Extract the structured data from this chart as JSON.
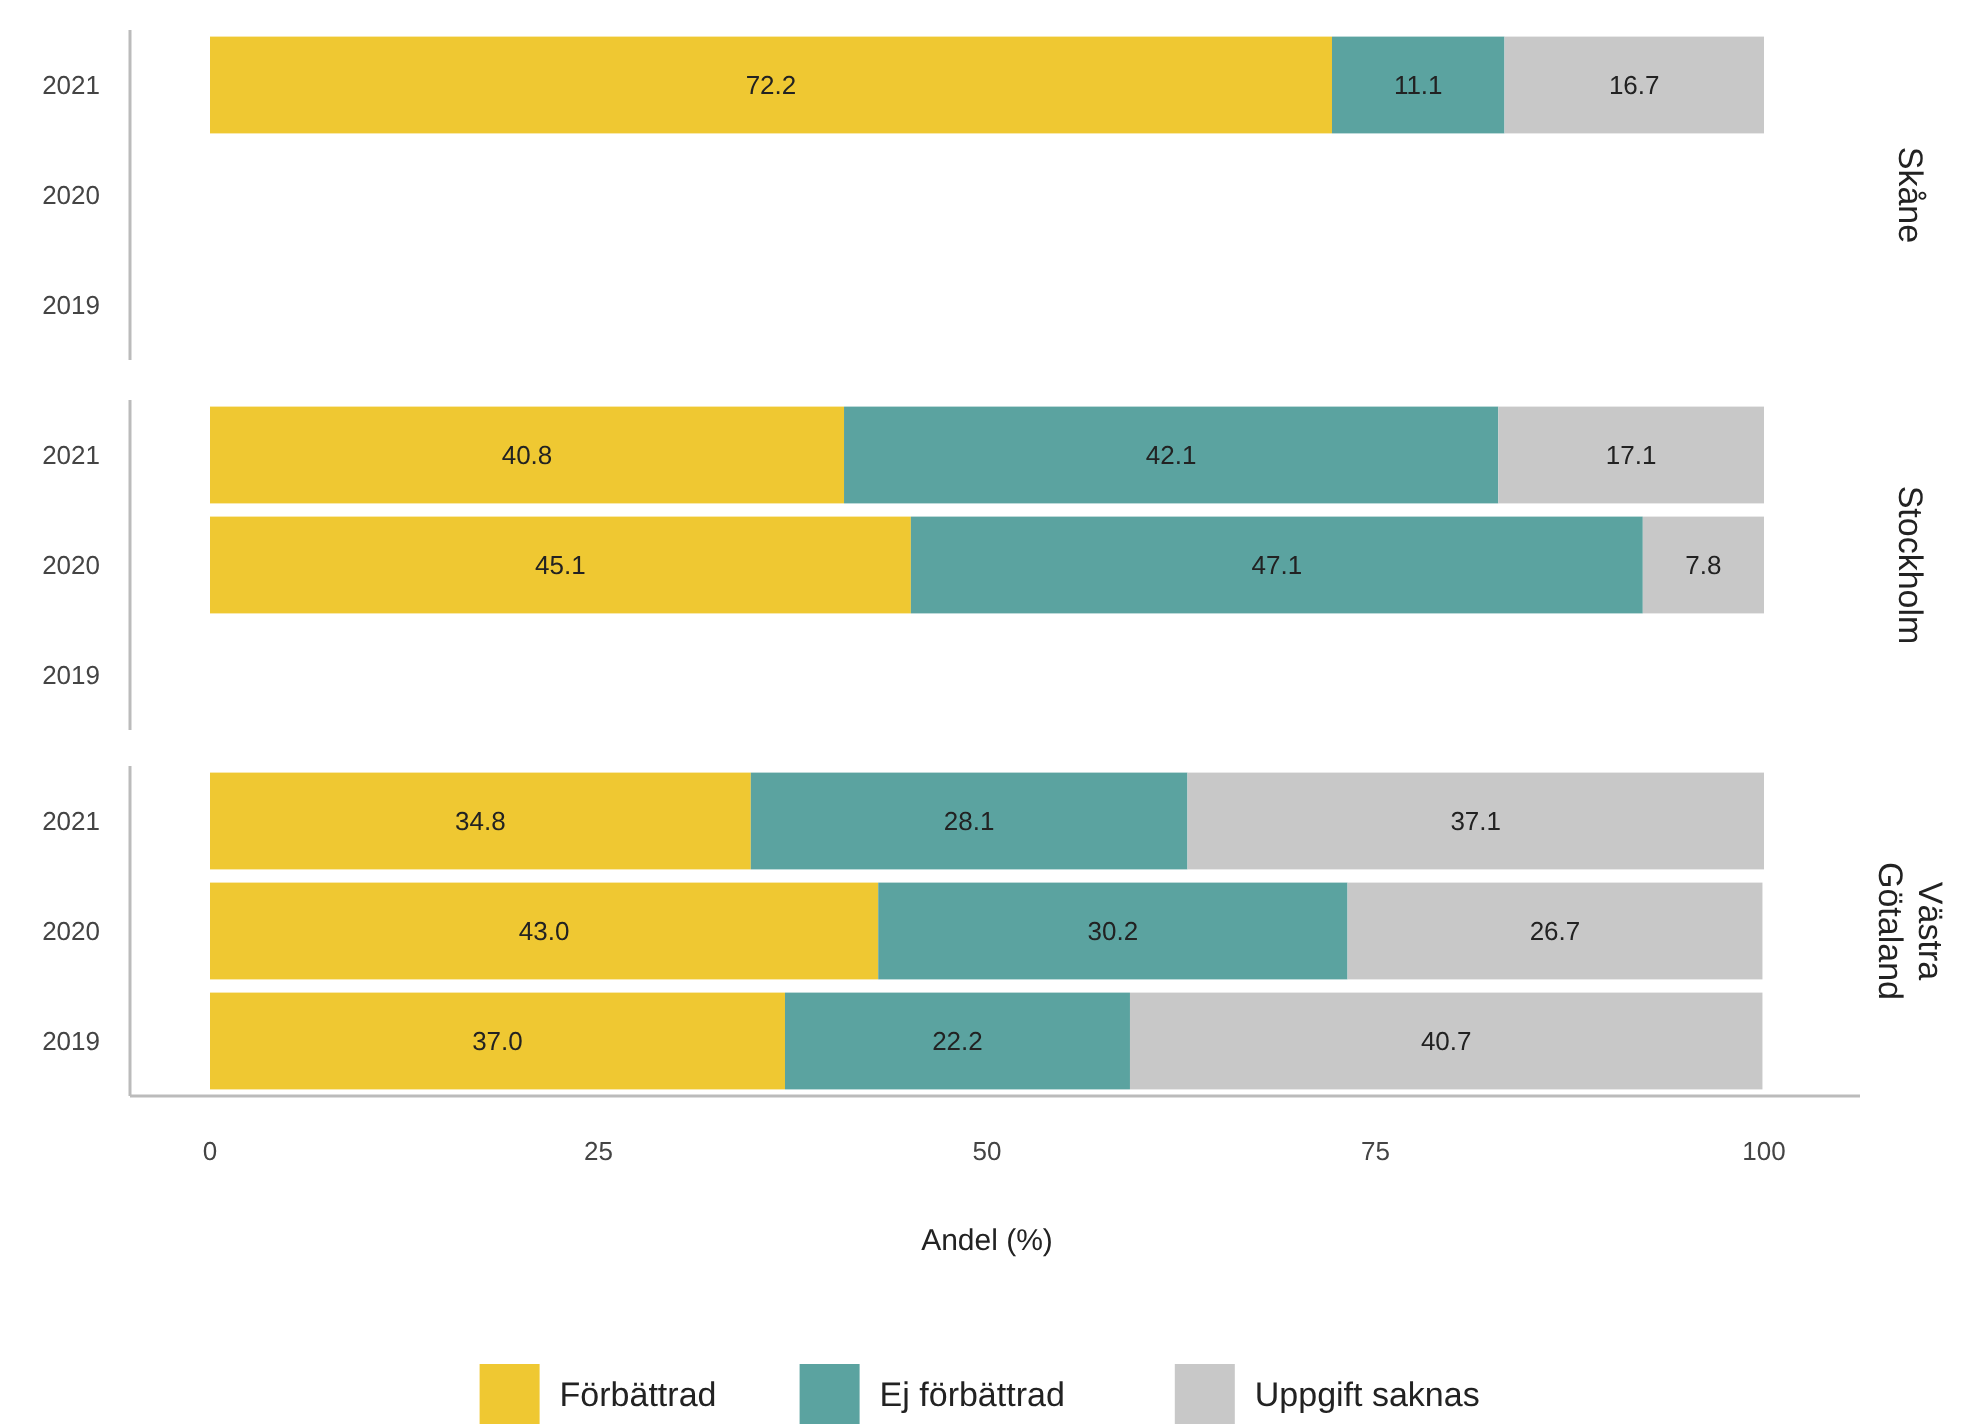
{
  "chart_data": [
    {
      "type": "bar",
      "orientation": "horizontal",
      "stacked": true,
      "y2label": "Skåne",
      "categories": [
        "2021",
        "2020",
        "2019"
      ],
      "xlim": [
        0,
        100
      ],
      "tick_labels": "y",
      "series": [
        {
          "color": "#efc832",
          "values": [
            72.2,
            null,
            null
          ],
          "value_labels": [
            "72.2",
            null,
            null
          ]
        },
        {
          "color": "#5ba3a0",
          "values": [
            11.1,
            null,
            null
          ],
          "value_labels": [
            "11.1",
            null,
            null
          ]
        },
        {
          "color": "#c8c8c8",
          "values": [
            16.7,
            null,
            null
          ],
          "value_labels": [
            "16.7",
            null,
            null
          ]
        }
      ]
    },
    {
      "type": "bar",
      "orientation": "horizontal",
      "stacked": true,
      "y2label": "Stockholm",
      "categories": [
        "2021",
        "2020",
        "2019"
      ],
      "xlim": [
        0,
        100
      ],
      "tick_labels": "y",
      "series": [
        {
          "color": "#efc832",
          "values": [
            40.8,
            45.1,
            null
          ],
          "value_labels": [
            "40.8",
            "45.1",
            null
          ]
        },
        {
          "color": "#5ba3a0",
          "values": [
            42.1,
            47.1,
            null
          ],
          "value_labels": [
            "42.1",
            "47.1",
            null
          ]
        },
        {
          "color": "#c8c8c8",
          "values": [
            17.1,
            7.8,
            null
          ],
          "value_labels": [
            "17.1",
            "7.8",
            null
          ]
        }
      ]
    },
    {
      "type": "bar",
      "orientation": "horizontal",
      "stacked": true,
      "y2label": "Västra Götaland",
      "xlabel": "Andel (%)",
      "categories": [
        "2021",
        "2020",
        "2019"
      ],
      "xlim": [
        0,
        100
      ],
      "xticks": [
        0,
        25,
        50,
        75,
        100
      ],
      "legend": "bottom",
      "series": [
        {
          "name": "Förbättrad",
          "color": "#efc832",
          "values": [
            34.8,
            43.0,
            37.0
          ],
          "value_labels": [
            "34.8",
            "43.0",
            "37.0"
          ]
        },
        {
          "name": "Ej förbättrad",
          "color": "#5ba3a0",
          "values": [
            28.1,
            30.2,
            22.2
          ],
          "value_labels": [
            "28.1",
            "30.2",
            "22.2"
          ]
        },
        {
          "name": "Uppgift saknas",
          "color": "#c8c8c8",
          "values": [
            37.1,
            26.7,
            40.7
          ],
          "value_labels": [
            "37.1",
            "26.7",
            "40.7"
          ]
        }
      ]
    }
  ]
}
